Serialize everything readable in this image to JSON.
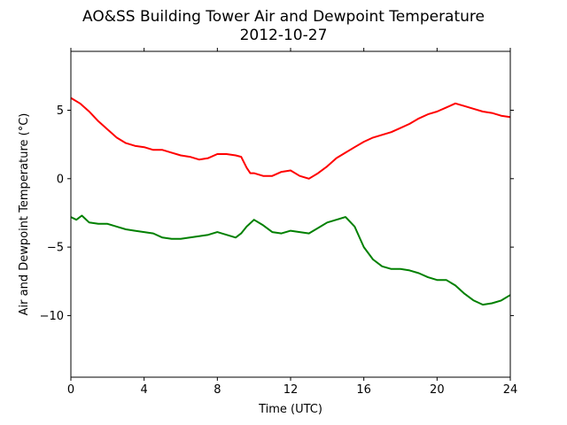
{
  "chart_data": {
    "type": "line",
    "title": "AO&SS Building Tower Air and Dewpoint Temperature",
    "subtitle": "2012-10-27",
    "xlabel": "Time (UTC)",
    "ylabel": "Air and Dewpoint Temperature (°C)",
    "xlim": [
      0,
      24
    ],
    "ylim": [
      -14.5,
      9.3
    ],
    "xticks": [
      0,
      4,
      8,
      12,
      16,
      20,
      24
    ],
    "yticks": [
      -10,
      -5,
      0,
      5
    ],
    "grid": false,
    "legend": false,
    "series": [
      {
        "color": "#ff0000",
        "x": [
          0,
          0.5,
          1,
          1.5,
          2,
          2.5,
          3,
          3.5,
          4,
          4.5,
          5,
          5.5,
          6,
          6.5,
          7,
          7.5,
          8,
          8.5,
          9,
          9.3,
          9.6,
          9.8,
          10,
          10.5,
          11,
          11.5,
          12,
          12.5,
          13,
          13.5,
          14,
          14.5,
          15,
          15.5,
          16,
          16.5,
          17,
          17.5,
          18,
          18.5,
          19,
          19.5,
          20,
          20.5,
          21,
          21.5,
          22,
          22.5,
          23,
          23.5,
          24
        ],
        "values": [
          5.9,
          5.5,
          4.9,
          4.2,
          3.6,
          3.0,
          2.6,
          2.4,
          2.3,
          2.1,
          2.1,
          1.9,
          1.7,
          1.6,
          1.4,
          1.5,
          1.8,
          1.8,
          1.7,
          1.6,
          0.8,
          0.4,
          0.4,
          0.2,
          0.2,
          0.5,
          0.6,
          0.2,
          0.0,
          0.4,
          0.9,
          1.5,
          1.9,
          2.3,
          2.7,
          3.0,
          3.2,
          3.4,
          3.7,
          4.0,
          4.4,
          4.7,
          4.9,
          5.2,
          5.5,
          5.3,
          5.1,
          4.9,
          4.8,
          4.6,
          4.5
        ]
      },
      {
        "color": "#008000",
        "x": [
          0,
          0.3,
          0.6,
          1,
          1.5,
          2,
          2.5,
          3,
          3.5,
          4,
          4.5,
          5,
          5.5,
          6,
          6.5,
          7,
          7.5,
          8,
          8.5,
          9,
          9.3,
          9.6,
          10,
          10.5,
          11,
          11.5,
          12,
          12.5,
          13,
          13.5,
          14,
          14.5,
          15,
          15.5,
          16,
          16.5,
          17,
          17.5,
          18,
          18.5,
          19,
          19.5,
          20,
          20.5,
          21,
          21.5,
          22,
          22.5,
          23,
          23.5,
          24
        ],
        "values": [
          -2.8,
          -3.0,
          -2.7,
          -3.2,
          -3.3,
          -3.3,
          -3.5,
          -3.7,
          -3.8,
          -3.9,
          -4.0,
          -4.3,
          -4.4,
          -4.4,
          -4.3,
          -4.2,
          -4.1,
          -3.9,
          -4.1,
          -4.3,
          -4.0,
          -3.5,
          -3.0,
          -3.4,
          -3.9,
          -4.0,
          -3.8,
          -3.9,
          -4.0,
          -3.6,
          -3.2,
          -3.0,
          -2.8,
          -3.5,
          -5.0,
          -5.9,
          -6.4,
          -6.6,
          -6.6,
          -6.7,
          -6.9,
          -7.2,
          -7.4,
          -7.4,
          -7.8,
          -8.4,
          -8.9,
          -9.2,
          -9.1,
          -8.9,
          -8.5
        ]
      }
    ]
  }
}
